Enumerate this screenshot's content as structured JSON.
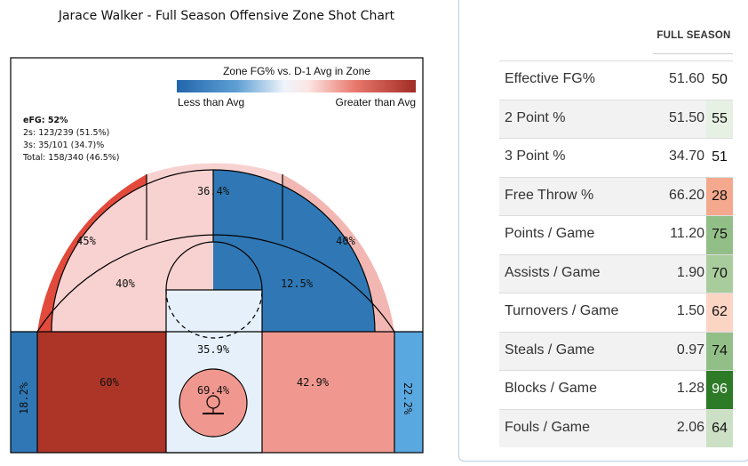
{
  "title": "Jarace Walker - Full Season Offensive Zone Shot Chart",
  "legend": {
    "title": "Zone FG% vs. D-1 Avg in Zone",
    "low_label": "Less than Avg",
    "high_label": "Greater than Avg"
  },
  "summary": {
    "efg": "eFG: 52%",
    "twos": "2s: 123/239 (51.5%)",
    "threes": "3s: 35/101 (34.7)%",
    "total": "Total: 158/340 (46.5%)"
  },
  "chart_data": {
    "type": "heatmap",
    "title": "Jarace Walker - Full Season Offensive Zone Shot Chart",
    "legend_title": "Zone FG% vs. D-1 Avg in Zone",
    "zones": [
      {
        "zone": "top-of-key-three",
        "fg_pct": "36.4%",
        "color": "#f8d2d0"
      },
      {
        "zone": "left-wing-three",
        "fg_pct": "45%",
        "color": "#e24a3c"
      },
      {
        "zone": "right-wing-three",
        "fg_pct": "40%",
        "color": "#f2b7b2"
      },
      {
        "zone": "left-elbow-midrange",
        "fg_pct": "40%",
        "color": "#f8d2d0"
      },
      {
        "zone": "right-elbow-midrange",
        "fg_pct": "12.5%",
        "color": "#2f78b5"
      },
      {
        "zone": "left-baseline-midrange",
        "fg_pct": "60%",
        "color": "#ad3528"
      },
      {
        "zone": "right-baseline-midrange",
        "fg_pct": "42.9%",
        "color": "#f0988f"
      },
      {
        "zone": "paint",
        "fg_pct": "35.9%",
        "color": "#e6f0fa"
      },
      {
        "zone": "restricted-area",
        "fg_pct": "69.4%",
        "color": "#f0988f"
      },
      {
        "zone": "left-corner-three",
        "fg_pct": "18.2%",
        "color": "#2f78b5"
      },
      {
        "zone": "right-corner-three",
        "fg_pct": "22.2%",
        "color": "#5aa8e0"
      }
    ]
  },
  "stats": {
    "header": "FULL SEASON",
    "rows": [
      {
        "label": "Effective FG%",
        "value": "51.60",
        "pctile": "50",
        "color": "#ffffff"
      },
      {
        "label": "2 Point %",
        "value": "51.50",
        "pctile": "55",
        "color": "#e6f1e3"
      },
      {
        "label": "3 Point %",
        "value": "34.70",
        "pctile": "51",
        "color": "#ffffff"
      },
      {
        "label": "Free Throw %",
        "value": "66.20",
        "pctile": "28",
        "color": "#f4a88d"
      },
      {
        "label": "Points / Game",
        "value": "11.20",
        "pctile": "75",
        "color": "#92bf87"
      },
      {
        "label": "Assists / Game",
        "value": "1.90",
        "pctile": "70",
        "color": "#a9cc9d"
      },
      {
        "label": "Turnovers / Game",
        "value": "1.50",
        "pctile": "62",
        "color": "#fbd4c4"
      },
      {
        "label": "Steals / Game",
        "value": "0.97",
        "pctile": "74",
        "color": "#92bf87"
      },
      {
        "label": "Blocks / Game",
        "value": "1.28",
        "pctile": "96",
        "color": "#2d7a27"
      },
      {
        "label": "Fouls / Game",
        "value": "2.06",
        "pctile": "64",
        "color": "#cbe0c4"
      }
    ]
  }
}
